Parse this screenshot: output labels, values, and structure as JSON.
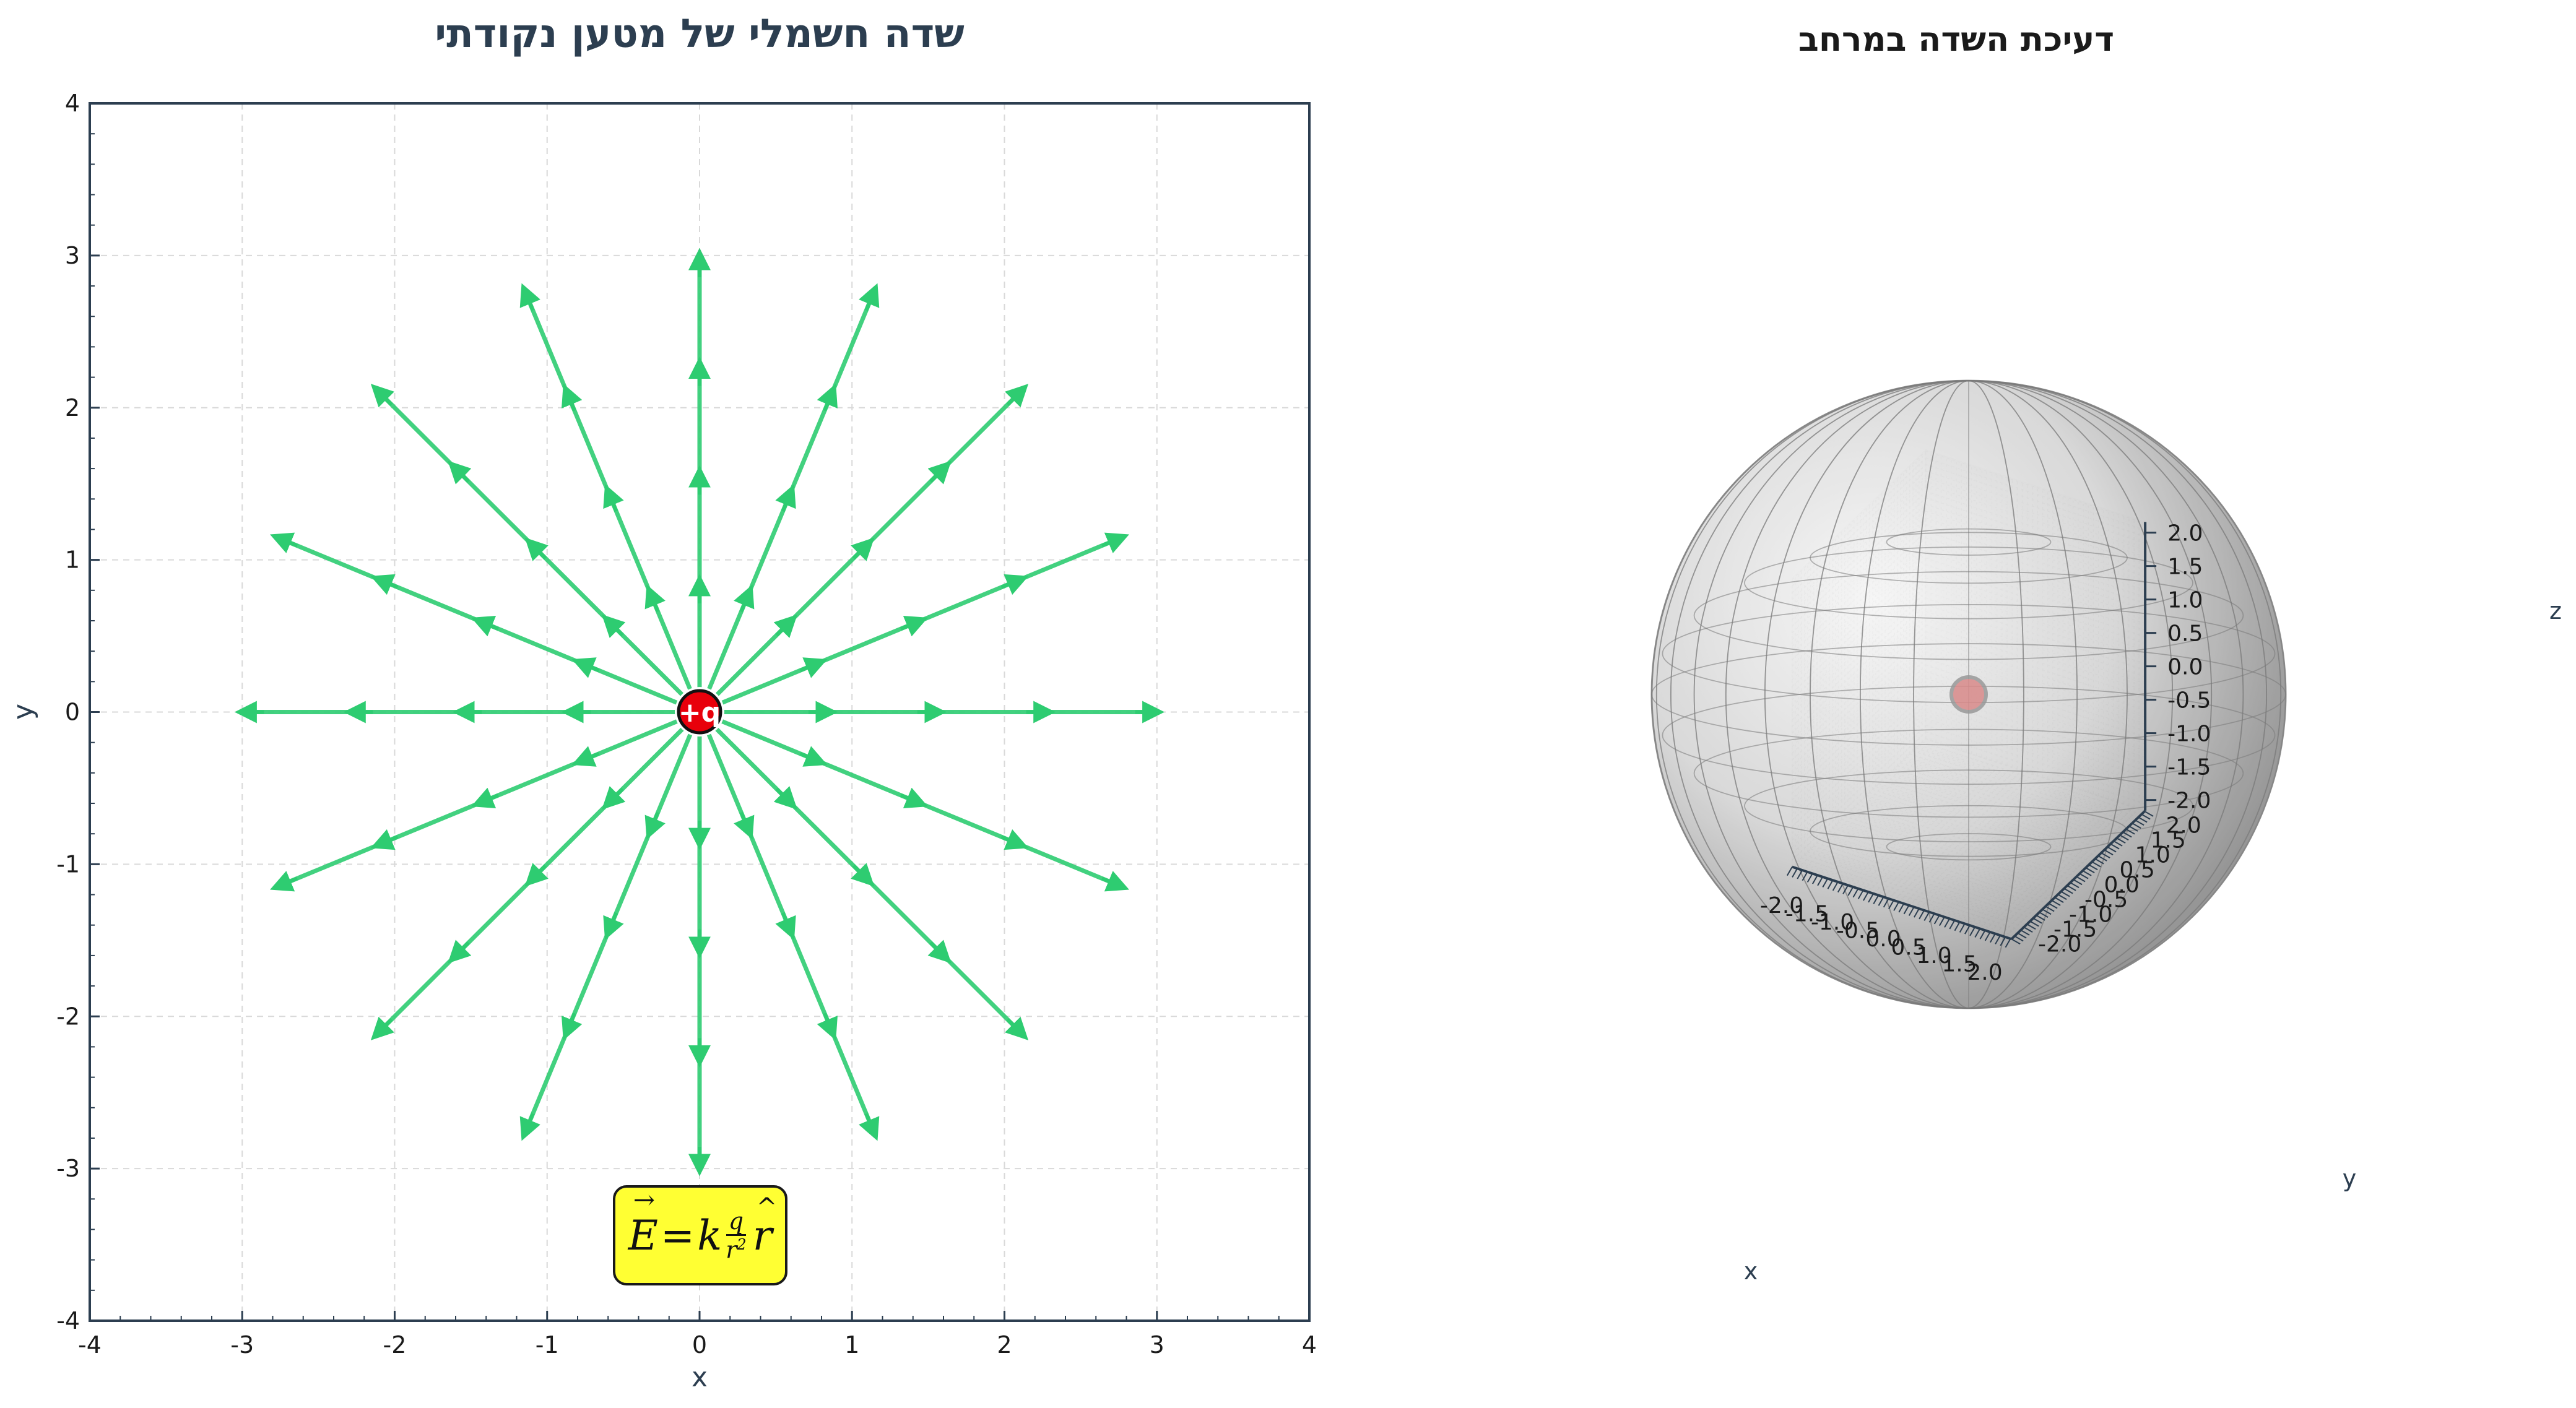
{
  "colors": {
    "field_line": "#2ecc71",
    "axis_dark": "#2c3e50",
    "charge_red": "#e8000b",
    "formula_bg": "#ffff33",
    "sphere_gray": "#a0a0a0"
  },
  "chart_data": [
    {
      "type": "line",
      "title": "שדה חשמלי של מטען נקודתי",
      "xlabel": "x",
      "ylabel": "y",
      "xlim": [
        -4,
        4
      ],
      "ylim": [
        -4,
        4
      ],
      "xticks": [
        "-4",
        "-3",
        "-2",
        "-1",
        "0",
        "1",
        "2",
        "3",
        "4"
      ],
      "yticks": [
        "-4",
        "-3",
        "-2",
        "-1",
        "0",
        "1",
        "2",
        "3",
        "4"
      ],
      "grid": true,
      "field_lines": {
        "count": 16,
        "inner_radius": 0.1,
        "outer_radius": 3.0,
        "arrows_per_line": 4
      },
      "charge": {
        "x": 0,
        "y": 0,
        "label": "+q"
      },
      "annotation": {
        "E": "E",
        "equals": "=",
        "k": "k",
        "q": "q",
        "r": "r",
        "exp": "2"
      }
    },
    {
      "type": "scatter",
      "title": "דעיכת השדה במרחב",
      "xlabel": "x",
      "ylabel": "y",
      "zlabel": "z",
      "xlim": [
        -2.0,
        2.0
      ],
      "ylim": [
        -2.0,
        2.0
      ],
      "zlim": [
        -2.0,
        2.0
      ],
      "xticks": [
        "-2.0",
        "-1.5",
        "-1.0",
        "-0.5",
        "0.0",
        "0.5",
        "1.0",
        "1.5",
        "2.0"
      ],
      "yticks": [
        "-2.0",
        "-1.5",
        "-1.0",
        "-0.5",
        "0.0",
        "0.5",
        "1.0",
        "1.5",
        "2.0"
      ],
      "zticks": [
        "-2.0",
        "-1.5",
        "-1.0",
        "-0.5",
        "0.0",
        "0.5",
        "1.0",
        "1.5",
        "2.0"
      ],
      "sphere_radius": 2.0,
      "charge": {
        "x": 0,
        "y": 0,
        "z": 0
      }
    }
  ]
}
